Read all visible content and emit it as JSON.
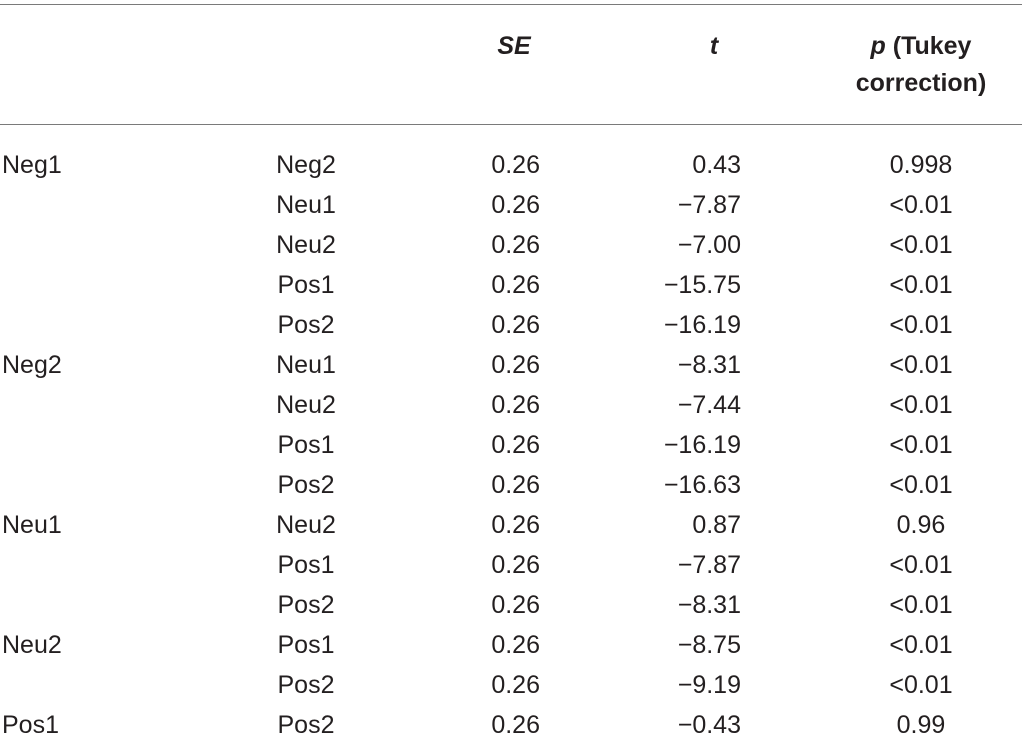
{
  "table": {
    "headers": {
      "se": "SE",
      "t": "t",
      "p_italic": "p",
      "p_line1_rest": " (Tukey",
      "p_line2": "correction)"
    },
    "rows": [
      {
        "group": "Neg1",
        "comparison": "Neg2",
        "se": "0.26",
        "t": "0.43",
        "p": "0.998"
      },
      {
        "group": "",
        "comparison": "Neu1",
        "se": "0.26",
        "t": "−7.87",
        "p": "<0.01"
      },
      {
        "group": "",
        "comparison": "Neu2",
        "se": "0.26",
        "t": "−7.00",
        "p": "<0.01"
      },
      {
        "group": "",
        "comparison": "Pos1",
        "se": "0.26",
        "t": "−15.75",
        "p": "<0.01"
      },
      {
        "group": "",
        "comparison": "Pos2",
        "se": "0.26",
        "t": "−16.19",
        "p": "<0.01"
      },
      {
        "group": "Neg2",
        "comparison": "Neu1",
        "se": "0.26",
        "t": "−8.31",
        "p": "<0.01"
      },
      {
        "group": "",
        "comparison": "Neu2",
        "se": "0.26",
        "t": "−7.44",
        "p": "<0.01"
      },
      {
        "group": "",
        "comparison": "Pos1",
        "se": "0.26",
        "t": "−16.19",
        "p": "<0.01"
      },
      {
        "group": "",
        "comparison": "Pos2",
        "se": "0.26",
        "t": "−16.63",
        "p": "<0.01"
      },
      {
        "group": "Neu1",
        "comparison": "Neu2",
        "se": "0.26",
        "t": "0.87",
        "p": "0.96"
      },
      {
        "group": "",
        "comparison": "Pos1",
        "se": "0.26",
        "t": "−7.87",
        "p": "<0.01"
      },
      {
        "group": "",
        "comparison": "Pos2",
        "se": "0.26",
        "t": "−8.31",
        "p": "<0.01"
      },
      {
        "group": "Neu2",
        "comparison": "Pos1",
        "se": "0.26",
        "t": "−8.75",
        "p": "<0.01"
      },
      {
        "group": "",
        "comparison": "Pos2",
        "se": "0.26",
        "t": "−9.19",
        "p": "<0.01"
      },
      {
        "group": "Pos1",
        "comparison": "Pos2",
        "se": "0.26",
        "t": "−0.43",
        "p": "0.99"
      }
    ]
  }
}
